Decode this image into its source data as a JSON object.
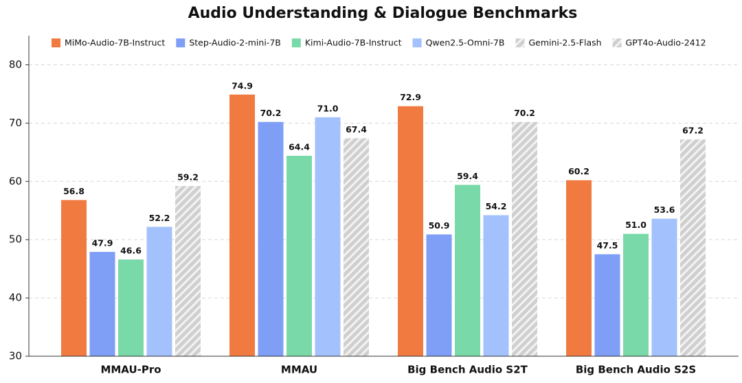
{
  "chart_data": {
    "type": "bar",
    "title": "Audio Understanding & Dialogue Benchmarks",
    "categories": [
      "MMAU-Pro",
      "MMAU",
      "Big Bench Audio S2T",
      "Big Bench Audio S2S"
    ],
    "series": [
      {
        "name": "MiMo-Audio-7B-Instruct",
        "color": "#f07a3f",
        "values": [
          56.8,
          74.9,
          72.9,
          60.2
        ],
        "value_labels": [
          "56.8",
          "74.9",
          "72.9",
          "60.2"
        ]
      },
      {
        "name": "Step-Audio-2-mini-7B",
        "color": "#7f9ef5",
        "values": [
          47.9,
          70.2,
          50.9,
          47.5
        ],
        "value_labels": [
          "47.9",
          "70.2",
          "50.9",
          "47.5"
        ]
      },
      {
        "name": "Kimi-Audio-7B-Instruct",
        "color": "#7ad9a8",
        "values": [
          46.6,
          64.4,
          59.4,
          51.0
        ],
        "value_labels": [
          "46.6",
          "64.4",
          "59.4",
          "51.0"
        ]
      },
      {
        "name": "Qwen2.5-Omni-7B",
        "color": "#a3c1fc",
        "values": [
          52.2,
          71.0,
          54.2,
          53.6
        ],
        "value_labels": [
          "52.2",
          "71.0",
          "54.2",
          "53.6"
        ]
      },
      {
        "name": "Gemini-2.5-Flash",
        "color": "#cfcfcf",
        "hatch": true,
        "values": [
          59.2,
          67.4,
          null,
          null
        ],
        "value_labels": [
          "59.2",
          "67.4",
          null,
          null
        ]
      },
      {
        "name": "GPT4o-Audio-2412",
        "color": "#cfcfcf",
        "hatch": true,
        "values": [
          null,
          null,
          70.2,
          67.2
        ],
        "value_labels": [
          null,
          null,
          "70.2",
          "67.2"
        ]
      }
    ],
    "ylim": [
      30,
      85
    ],
    "yticks": [
      30,
      40,
      50,
      60,
      70,
      80
    ],
    "grid": true,
    "legend": "top"
  }
}
